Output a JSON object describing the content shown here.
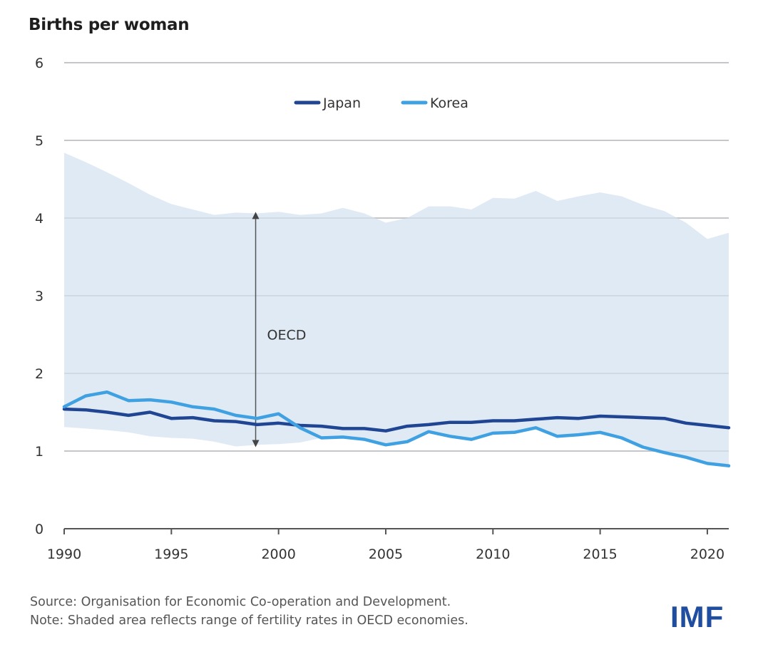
{
  "chart_data": {
    "type": "line",
    "title": "Births per woman",
    "xlabel": "",
    "ylabel": "Births per woman",
    "x": [
      1990,
      1991,
      1992,
      1993,
      1994,
      1995,
      1996,
      1997,
      1998,
      1999,
      2000,
      2001,
      2002,
      2003,
      2004,
      2005,
      2006,
      2007,
      2008,
      2009,
      2010,
      2011,
      2012,
      2013,
      2014,
      2015,
      2016,
      2017,
      2018,
      2019,
      2020,
      2021
    ],
    "xlim": [
      1990,
      2021
    ],
    "ylim": [
      0,
      6
    ],
    "x_ticks": [
      1990,
      1995,
      2000,
      2005,
      2010,
      2015,
      2020
    ],
    "x_tick_labels": [
      "1990",
      "1995",
      "2000",
      "2005",
      "2010",
      "2015",
      "2020"
    ],
    "y_ticks": [
      0,
      1,
      2,
      3,
      4,
      5,
      6
    ],
    "y_tick_labels": [
      "0",
      "1",
      "2",
      "3",
      "4",
      "5",
      "6"
    ],
    "grid": true,
    "legend_position": "top-center",
    "series": [
      {
        "name": "Japan",
        "color": "#1f4593",
        "values": [
          1.54,
          1.53,
          1.5,
          1.46,
          1.5,
          1.42,
          1.43,
          1.39,
          1.38,
          1.34,
          1.36,
          1.33,
          1.32,
          1.29,
          1.29,
          1.26,
          1.32,
          1.34,
          1.37,
          1.37,
          1.39,
          1.39,
          1.41,
          1.43,
          1.42,
          1.45,
          1.44,
          1.43,
          1.42,
          1.36,
          1.33,
          1.3
        ]
      },
      {
        "name": "Korea",
        "color": "#3fa0e2",
        "values": [
          1.57,
          1.71,
          1.76,
          1.65,
          1.66,
          1.63,
          1.57,
          1.54,
          1.46,
          1.42,
          1.48,
          1.3,
          1.17,
          1.18,
          1.15,
          1.08,
          1.12,
          1.25,
          1.19,
          1.15,
          1.23,
          1.24,
          1.3,
          1.19,
          1.21,
          1.24,
          1.17,
          1.05,
          0.98,
          0.92,
          0.84,
          0.81
        ]
      }
    ],
    "range_band": {
      "name": "OECD",
      "color": "#dfeaf5",
      "max": [
        4.84,
        4.72,
        4.59,
        4.45,
        4.3,
        4.18,
        4.11,
        4.04,
        4.07,
        4.06,
        4.08,
        4.04,
        4.06,
        4.13,
        4.06,
        3.94,
        4.0,
        4.15,
        4.15,
        4.11,
        4.26,
        4.25,
        4.35,
        4.22,
        4.28,
        4.33,
        4.28,
        4.17,
        4.09,
        3.94,
        3.73,
        3.81
      ],
      "min": [
        1.31,
        1.29,
        1.27,
        1.24,
        1.19,
        1.17,
        1.16,
        1.12,
        1.06,
        1.08,
        1.09,
        1.11,
        1.17,
        1.18,
        1.15,
        1.08,
        1.12,
        1.25,
        1.19,
        1.15,
        1.23,
        1.24,
        1.3,
        1.19,
        1.21,
        1.24,
        1.17,
        1.05,
        0.98,
        0.92,
        0.84,
        0.81
      ]
    },
    "annotations": [
      {
        "text": "OECD",
        "type": "range-arrow",
        "x": 1998
      }
    ]
  },
  "footer": {
    "source": "Source: Organisation for Economic Co-operation and Development.",
    "note": "Note: Shaded area reflects range of fertility rates in OECD economies."
  },
  "logo": {
    "text": "IMF",
    "color": "#1f4ea1"
  }
}
